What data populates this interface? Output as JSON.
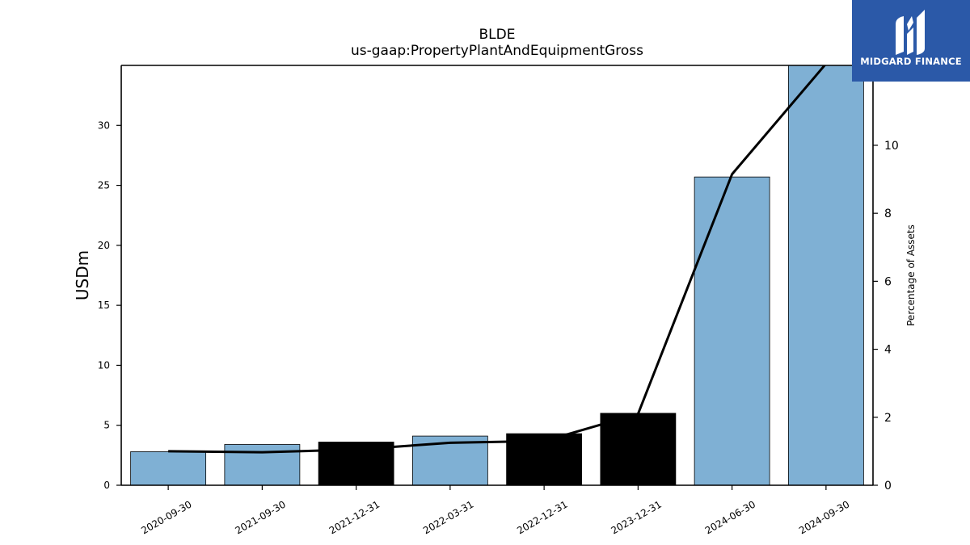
{
  "chart_data": {
    "type": "bar",
    "title": "BLDE",
    "subtitle": "us-gaap:PropertyPlantAndEquipmentGross",
    "ylabel": "USDm",
    "y2label": "Percentage of Assets",
    "categories": [
      "2020-09-30",
      "2021-09-30",
      "2021-12-31",
      "2022-03-31",
      "2022-12-31",
      "2023-12-31",
      "2024-06-30",
      "2024-09-30"
    ],
    "series": [
      {
        "type": "bar",
        "axis": "left",
        "values": [
          2.8,
          3.4,
          3.6,
          4.1,
          4.3,
          6.0,
          25.7,
          35.0
        ],
        "colors": [
          "#7fb0d4",
          "#7fb0d4",
          "#000000",
          "#7fb0d4",
          "#000000",
          "#000000",
          "#7fb0d4",
          "#7fb0d4"
        ]
      },
      {
        "type": "line",
        "axis": "right",
        "values": [
          1.0,
          0.97,
          1.05,
          1.25,
          1.3,
          2.1,
          9.15,
          12.4
        ],
        "color": "#000000"
      }
    ],
    "ylim": [
      0,
      35
    ],
    "y2lim": [
      0,
      12.35
    ],
    "yticks": [
      0,
      5,
      10,
      15,
      20,
      25,
      30
    ],
    "y2ticks": [
      0,
      2,
      4,
      6,
      8,
      10
    ],
    "grid": false
  },
  "logo": {
    "text": "MIDGARD FINANCE",
    "background": "#2b59a8"
  }
}
